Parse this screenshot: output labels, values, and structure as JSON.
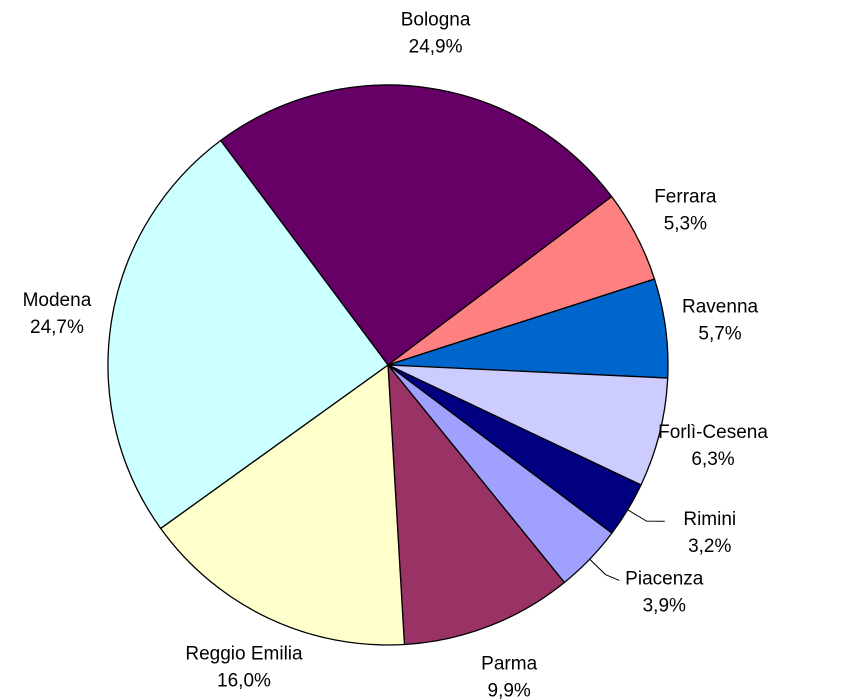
{
  "chart_data": {
    "type": "pie",
    "categories": [
      "Bologna",
      "Ferrara",
      "Ravenna",
      "Forlì-Cesena",
      "Rimini",
      "Piacenza",
      "Parma",
      "Reggio Emilia",
      "Modena"
    ],
    "values": [
      24.9,
      5.3,
      5.7,
      6.3,
      3.2,
      3.9,
      9.9,
      16.0,
      24.7
    ],
    "value_labels": [
      "24,9%",
      "5,3%",
      "5,7%",
      "6,3%",
      "3,2%",
      "3,9%",
      "9,9%",
      "16,0%",
      "24,7%"
    ],
    "colors": [
      "#660066",
      "#ff8080",
      "#0066cc",
      "#ccccff",
      "#000080",
      "#a0a0ff",
      "#993366",
      "#ffffcc",
      "#ccffff"
    ]
  }
}
